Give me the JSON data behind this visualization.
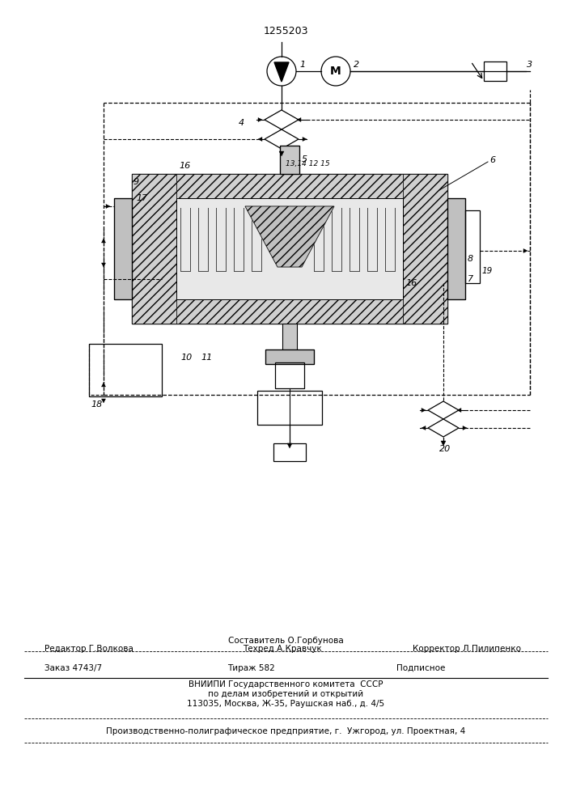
{
  "patent_number": "1255203",
  "bg_color": "#ffffff",
  "line_color": "#000000",
  "footer_line1": "Составитель О.Горбунова",
  "footer_editor": "Редактор Г.Волкова",
  "footer_techred": "Техред А.Кравчук",
  "footer_corrector": "Корректор Л.Пилипенко",
  "footer_order": "Заказ 4743/7",
  "footer_tirazh": "Тираж 582",
  "footer_podpisnoe": "Подписное",
  "footer_vniiipi": "ВНИИПИ Государственного комитета  СССР",
  "footer_po_delam": "по делам изобретений и открытий",
  "footer_address": "113035, Москва, Ж-35, Раушская наб., д. 4/5",
  "footer_factory": "Производственно-полиграфическое предприятие, г.  Ужгород, ул. Проектная, 4"
}
